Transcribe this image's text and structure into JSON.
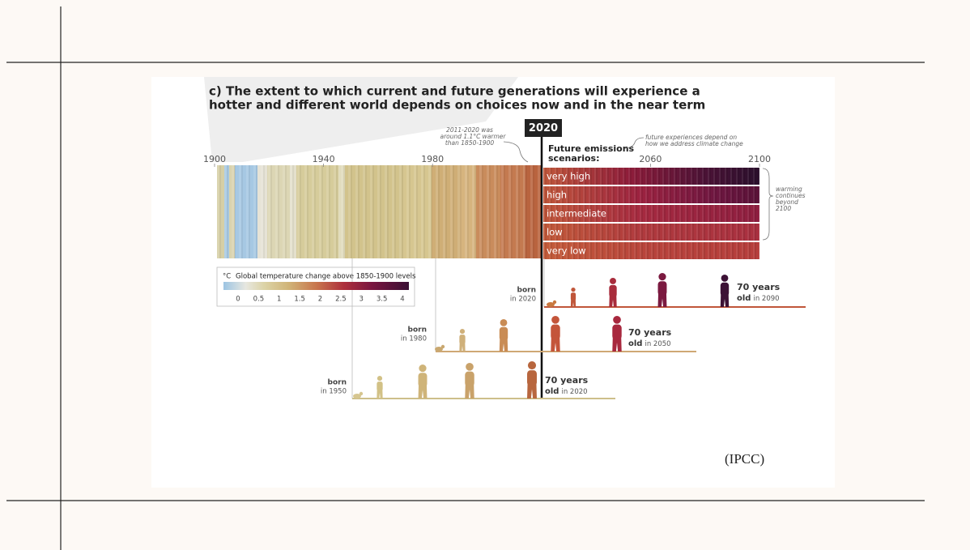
{
  "figure": {
    "title": [
      "c) The extent to which current and future generations will experience a",
      "hotter and different world depends on choices now and in the near term"
    ],
    "year_marker": "2020",
    "note_past": [
      "2011-2020 was",
      "around 1.1°C warmer",
      "than 1850-1900"
    ],
    "scenarios_heading": [
      "Future emissions",
      "scenarios:"
    ],
    "note_future": [
      "future experiences depend on",
      "how we address climate change"
    ],
    "timeline": {
      "xlim": [
        1900,
        2100
      ],
      "ticks": [
        1900,
        1940,
        1980,
        2060,
        2100
      ]
    },
    "scenarios": [
      "very high",
      "high",
      "intermediate",
      "low",
      "very low"
    ],
    "note_beyond": [
      "warming",
      "continues",
      "beyond",
      "2100"
    ],
    "legend": {
      "unit": "°C",
      "title": "Global temperature change above 1850-1900 levels",
      "ticks": [
        0,
        0.5,
        1,
        1.5,
        2,
        2.5,
        3,
        3.5,
        4
      ]
    },
    "generations": [
      {
        "born": "born",
        "year": "in 2020",
        "age": "70 years",
        "old": "old",
        "when": "in 2090"
      },
      {
        "born": "born",
        "year": "in 1980",
        "age": "70 years",
        "old": "old",
        "when": "in 2050"
      },
      {
        "born": "born",
        "year": "in 1950",
        "age": "70 years",
        "old": "old",
        "when": "in 2020"
      }
    ],
    "source": "(IPCC)"
  }
}
